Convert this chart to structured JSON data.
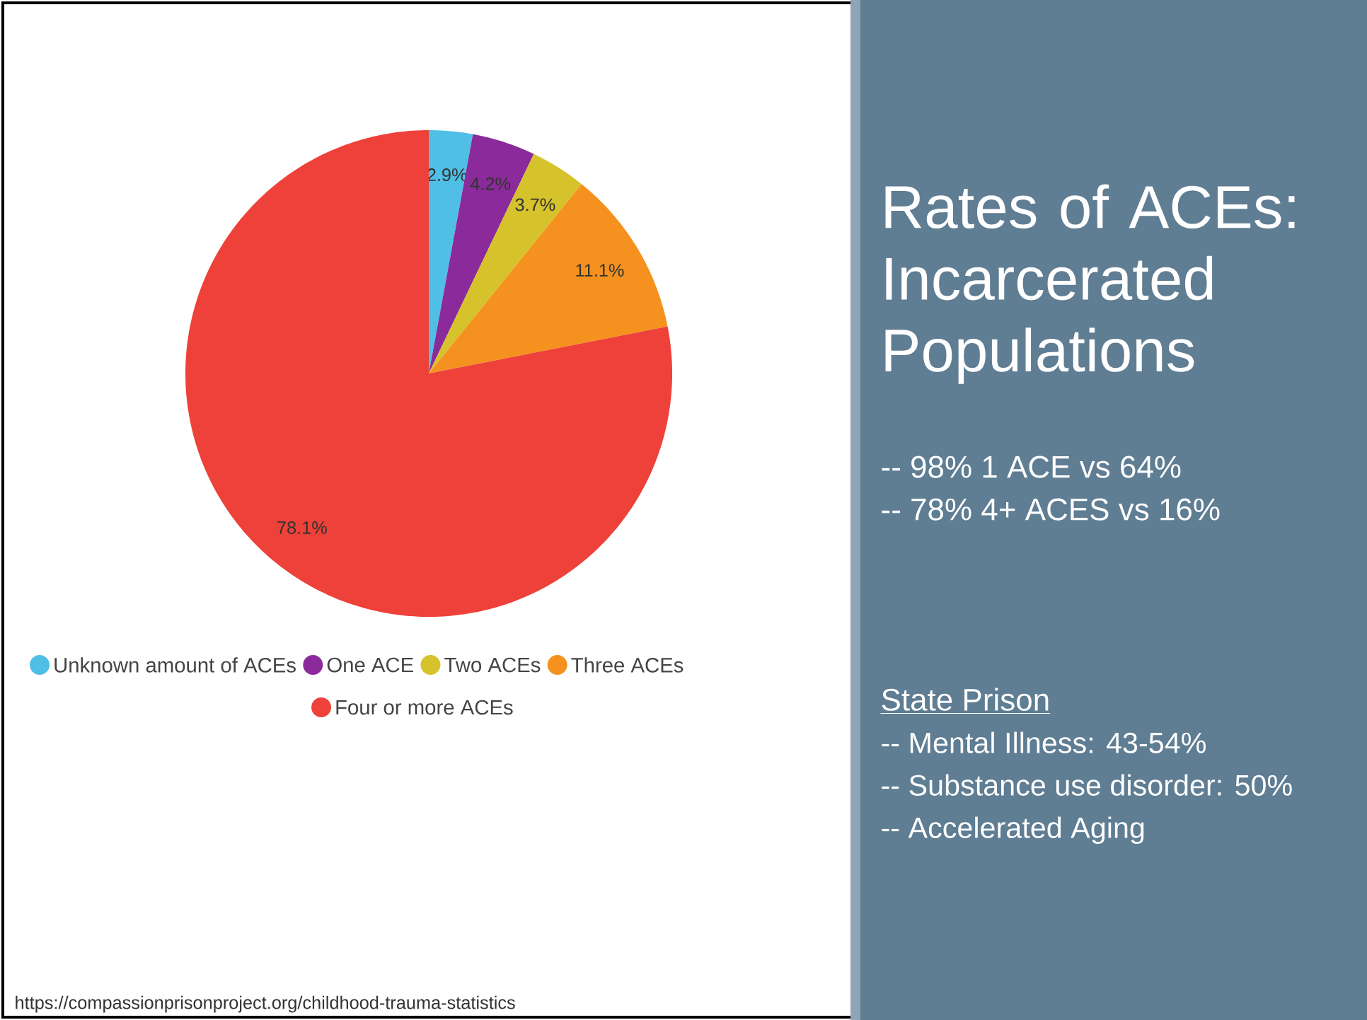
{
  "chart_data": {
    "type": "pie",
    "title": "Rates of ACEs: Incarcerated Populations",
    "categories": [
      "Unknown amount of ACEs",
      "One ACE",
      "Two ACEs",
      "Three ACEs",
      "Four or more ACEs"
    ],
    "values": [
      2.9,
      4.2,
      3.7,
      11.1,
      78.1
    ],
    "colors": [
      "#4fbfe6",
      "#8b2a9b",
      "#d6c22b",
      "#f5921f",
      "#ee4139"
    ],
    "value_labels": [
      "2.9%",
      "4.2%",
      "3.7%",
      "11.1%",
      "78.1%"
    ],
    "legend": "bottom",
    "annotations": [
      "-- 98% 1 ACE vs 64%",
      "-- 78% 4+ ACES vs 16%",
      "State Prison",
      "-- Mental Illness: 43-54%",
      "-- Substance use disorder: 50%",
      "-- Accelerated Aging",
      "https://compassionprisonproject.org/childhood-trauma-statistics"
    ]
  }
}
